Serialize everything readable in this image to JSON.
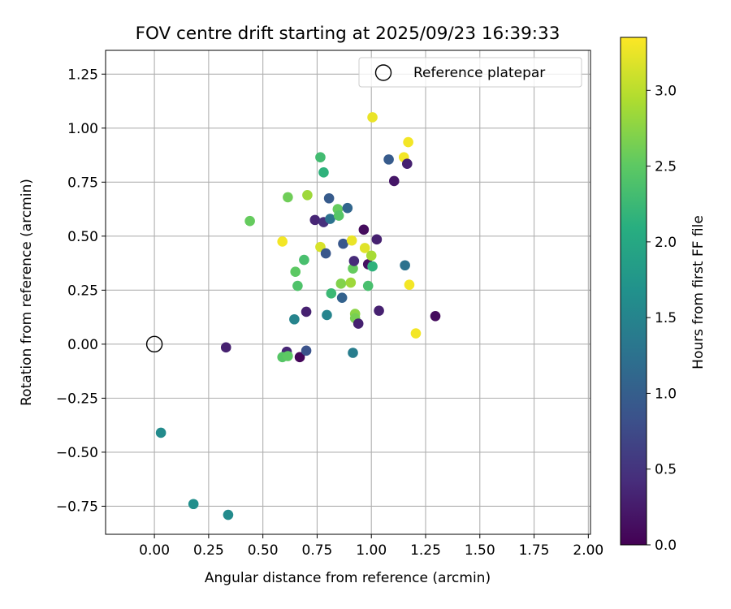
{
  "chart_data": {
    "type": "scatter",
    "title": "FOV centre drift starting at 2025/09/23 16:39:33",
    "xlabel": "Angular distance from reference (arcmin)",
    "ylabel": "Rotation from reference (arcmin)",
    "xlim": [
      -0.225,
      2.01
    ],
    "ylim": [
      -0.88,
      1.36
    ],
    "xticks": [
      0.0,
      0.25,
      0.5,
      0.75,
      1.0,
      1.25,
      1.5,
      1.75,
      2.0
    ],
    "xtick_labels": [
      "0.00",
      "0.25",
      "0.50",
      "0.75",
      "1.00",
      "1.25",
      "1.50",
      "1.75",
      "2.00"
    ],
    "yticks": [
      -0.75,
      -0.5,
      -0.25,
      0.0,
      0.25,
      0.5,
      0.75,
      1.0,
      1.25
    ],
    "ytick_labels": [
      "−0.75",
      "−0.50",
      "−0.25",
      "0.00",
      "0.25",
      "0.50",
      "0.75",
      "1.00",
      "1.25"
    ],
    "grid": true,
    "legend": {
      "position": "top-right",
      "entries": [
        "Reference platepar"
      ]
    },
    "reference_point": {
      "x": 0.0,
      "y": 0.0,
      "label": "Reference platepar"
    },
    "colorbar": {
      "label": "Hours from first FF file",
      "colormap": "viridis",
      "range": [
        0.0,
        3.35
      ],
      "ticks": [
        0.0,
        0.5,
        1.0,
        1.5,
        2.0,
        2.5,
        3.0
      ],
      "tick_labels": [
        "0.0",
        "0.5",
        "1.0",
        "1.5",
        "2.0",
        "2.5",
        "3.0"
      ]
    },
    "points": [
      {
        "x": 0.33,
        "y": -0.015,
        "hours": 0.3
      },
      {
        "x": 0.61,
        "y": -0.035,
        "hours": 0.35
      },
      {
        "x": 0.67,
        "y": -0.06,
        "hours": 0.05
      },
      {
        "x": 0.7,
        "y": -0.03,
        "hours": 0.85
      },
      {
        "x": 0.59,
        "y": -0.06,
        "hours": 2.45
      },
      {
        "x": 0.615,
        "y": -0.055,
        "hours": 2.5
      },
      {
        "x": 0.03,
        "y": -0.41,
        "hours": 1.6
      },
      {
        "x": 0.18,
        "y": -0.74,
        "hours": 1.65
      },
      {
        "x": 0.34,
        "y": -0.79,
        "hours": 1.6
      },
      {
        "x": 0.44,
        "y": 0.57,
        "hours": 2.55
      },
      {
        "x": 0.59,
        "y": 0.475,
        "hours": 3.3
      },
      {
        "x": 0.615,
        "y": 0.68,
        "hours": 2.6
      },
      {
        "x": 0.645,
        "y": 0.115,
        "hours": 1.5
      },
      {
        "x": 0.65,
        "y": 0.335,
        "hours": 2.5
      },
      {
        "x": 0.66,
        "y": 0.27,
        "hours": 2.4
      },
      {
        "x": 0.69,
        "y": 0.39,
        "hours": 2.35
      },
      {
        "x": 0.7,
        "y": 0.15,
        "hours": 0.3
      },
      {
        "x": 0.705,
        "y": 0.69,
        "hours": 2.85
      },
      {
        "x": 0.74,
        "y": 0.575,
        "hours": 0.35
      },
      {
        "x": 0.765,
        "y": 0.865,
        "hours": 2.3
      },
      {
        "x": 0.765,
        "y": 0.45,
        "hours": 3.15
      },
      {
        "x": 0.78,
        "y": 0.795,
        "hours": 2.15
      },
      {
        "x": 0.78,
        "y": 0.565,
        "hours": 0.45
      },
      {
        "x": 0.79,
        "y": 0.42,
        "hours": 0.9
      },
      {
        "x": 0.795,
        "y": 0.135,
        "hours": 1.5
      },
      {
        "x": 0.805,
        "y": 0.675,
        "hours": 0.95
      },
      {
        "x": 0.81,
        "y": 0.58,
        "hours": 1.25
      },
      {
        "x": 0.815,
        "y": 0.235,
        "hours": 2.25
      },
      {
        "x": 0.845,
        "y": 0.625,
        "hours": 2.55
      },
      {
        "x": 0.85,
        "y": 0.595,
        "hours": 2.45
      },
      {
        "x": 0.86,
        "y": 0.28,
        "hours": 2.7
      },
      {
        "x": 0.865,
        "y": 0.215,
        "hours": 1.05
      },
      {
        "x": 0.87,
        "y": 0.465,
        "hours": 0.9
      },
      {
        "x": 0.89,
        "y": 0.63,
        "hours": 1.1
      },
      {
        "x": 0.905,
        "y": 0.285,
        "hours": 2.85
      },
      {
        "x": 0.91,
        "y": 0.48,
        "hours": 3.25
      },
      {
        "x": 0.915,
        "y": 0.35,
        "hours": 2.55
      },
      {
        "x": 0.915,
        "y": -0.04,
        "hours": 1.4
      },
      {
        "x": 0.92,
        "y": 0.385,
        "hours": 0.4
      },
      {
        "x": 0.925,
        "y": 0.14,
        "hours": 2.75
      },
      {
        "x": 0.925,
        "y": 0.12,
        "hours": 2.65
      },
      {
        "x": 0.94,
        "y": 0.095,
        "hours": 0.3
      },
      {
        "x": 0.965,
        "y": 0.53,
        "hours": 0.1
      },
      {
        "x": 0.97,
        "y": 0.445,
        "hours": 3.2
      },
      {
        "x": 0.985,
        "y": 0.37,
        "hours": 0.15
      },
      {
        "x": 0.985,
        "y": 0.27,
        "hours": 2.35
      },
      {
        "x": 1.0,
        "y": 0.41,
        "hours": 2.9
      },
      {
        "x": 1.005,
        "y": 1.05,
        "hours": 3.25
      },
      {
        "x": 1.005,
        "y": 0.36,
        "hours": 2.15
      },
      {
        "x": 1.025,
        "y": 0.485,
        "hours": 0.3
      },
      {
        "x": 1.035,
        "y": 0.155,
        "hours": 0.3
      },
      {
        "x": 1.08,
        "y": 0.855,
        "hours": 0.95
      },
      {
        "x": 1.105,
        "y": 0.755,
        "hours": 0.2
      },
      {
        "x": 1.15,
        "y": 0.865,
        "hours": 3.3
      },
      {
        "x": 1.155,
        "y": 0.365,
        "hours": 1.25
      },
      {
        "x": 1.165,
        "y": 0.835,
        "hours": 0.3
      },
      {
        "x": 1.17,
        "y": 0.935,
        "hours": 3.3
      },
      {
        "x": 1.175,
        "y": 0.275,
        "hours": 3.3
      },
      {
        "x": 1.205,
        "y": 0.05,
        "hours": 3.3
      },
      {
        "x": 1.295,
        "y": 0.13,
        "hours": 0.1
      }
    ]
  }
}
